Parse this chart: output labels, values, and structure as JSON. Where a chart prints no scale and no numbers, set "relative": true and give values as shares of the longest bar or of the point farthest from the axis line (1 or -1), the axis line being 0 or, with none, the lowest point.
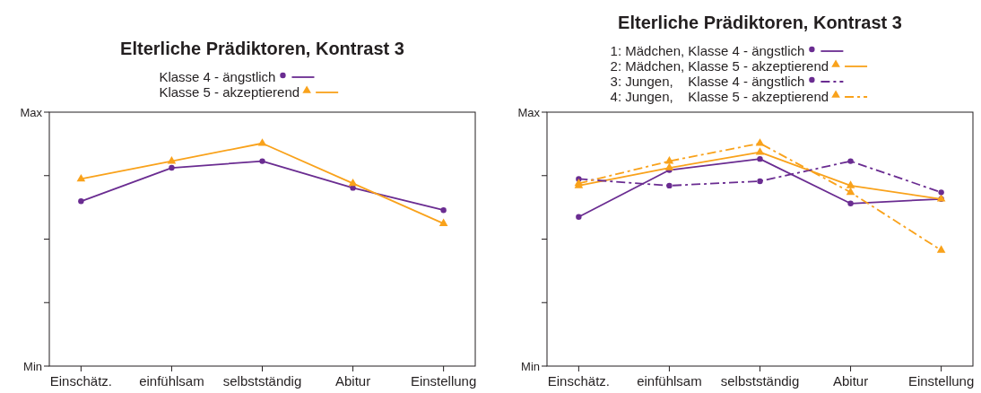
{
  "chart_data": [
    {
      "type": "line",
      "title": "Elterliche Prädiktoren, Kontrast 3",
      "categories": [
        "Einschätz.",
        "einfühlsam",
        "selbstständig",
        "Abitur",
        "Einstellung"
      ],
      "relative": true,
      "annotations": [
        "Min",
        "Max"
      ],
      "grid": false,
      "legend": "top",
      "series": [
        {
          "name": "Klasse 4 - ängstlich",
          "color": "#6a2c91",
          "marker": "circle",
          "line_style": "solid",
          "values": [
            0.74,
            0.89,
            0.92,
            0.8,
            0.7
          ]
        },
        {
          "name": "Klasse 5 - akzeptierend",
          "color": "#f9a21b",
          "marker": "triangle",
          "line_style": "solid",
          "values": [
            0.84,
            0.92,
            1,
            0.82,
            0.64
          ]
        }
      ]
    },
    {
      "type": "line",
      "title": "Elterliche Prädiktoren, Kontrast 3",
      "categories": [
        "Einschätz.",
        "einfühlsam",
        "selbstständig",
        "Abitur",
        "Einstellung"
      ],
      "relative": true,
      "annotations": [
        "Min",
        "Max"
      ],
      "grid": false,
      "legend": "top",
      "series": [
        {
          "name": "1: Mädchen, Klasse 4 - ängstlich",
          "color": "#6a2c91",
          "marker": "circle",
          "line_style": "solid",
          "values": [
            0.67,
            0.88,
            0.93,
            0.73,
            0.75
          ]
        },
        {
          "name": "2: Mädchen, Klasse 5 - akzeptierend",
          "color": "#f9a21b",
          "marker": "triangle",
          "line_style": "solid",
          "values": [
            0.81,
            0.89,
            0.96,
            0.81,
            0.75
          ]
        },
        {
          "name": "3: Jungen,    Klasse 4 - ängstlich",
          "color": "#6a2c91",
          "marker": "circle",
          "line_style": "dashed",
          "values": [
            0.84,
            0.81,
            0.83,
            0.92,
            0.78
          ]
        },
        {
          "name": "4: Jungen,    Klasse 5 - akzeptierend",
          "color": "#f9a21b",
          "marker": "triangle",
          "line_style": "dashed",
          "values": [
            0.82,
            0.92,
            1,
            0.78,
            0.52
          ]
        }
      ]
    }
  ]
}
